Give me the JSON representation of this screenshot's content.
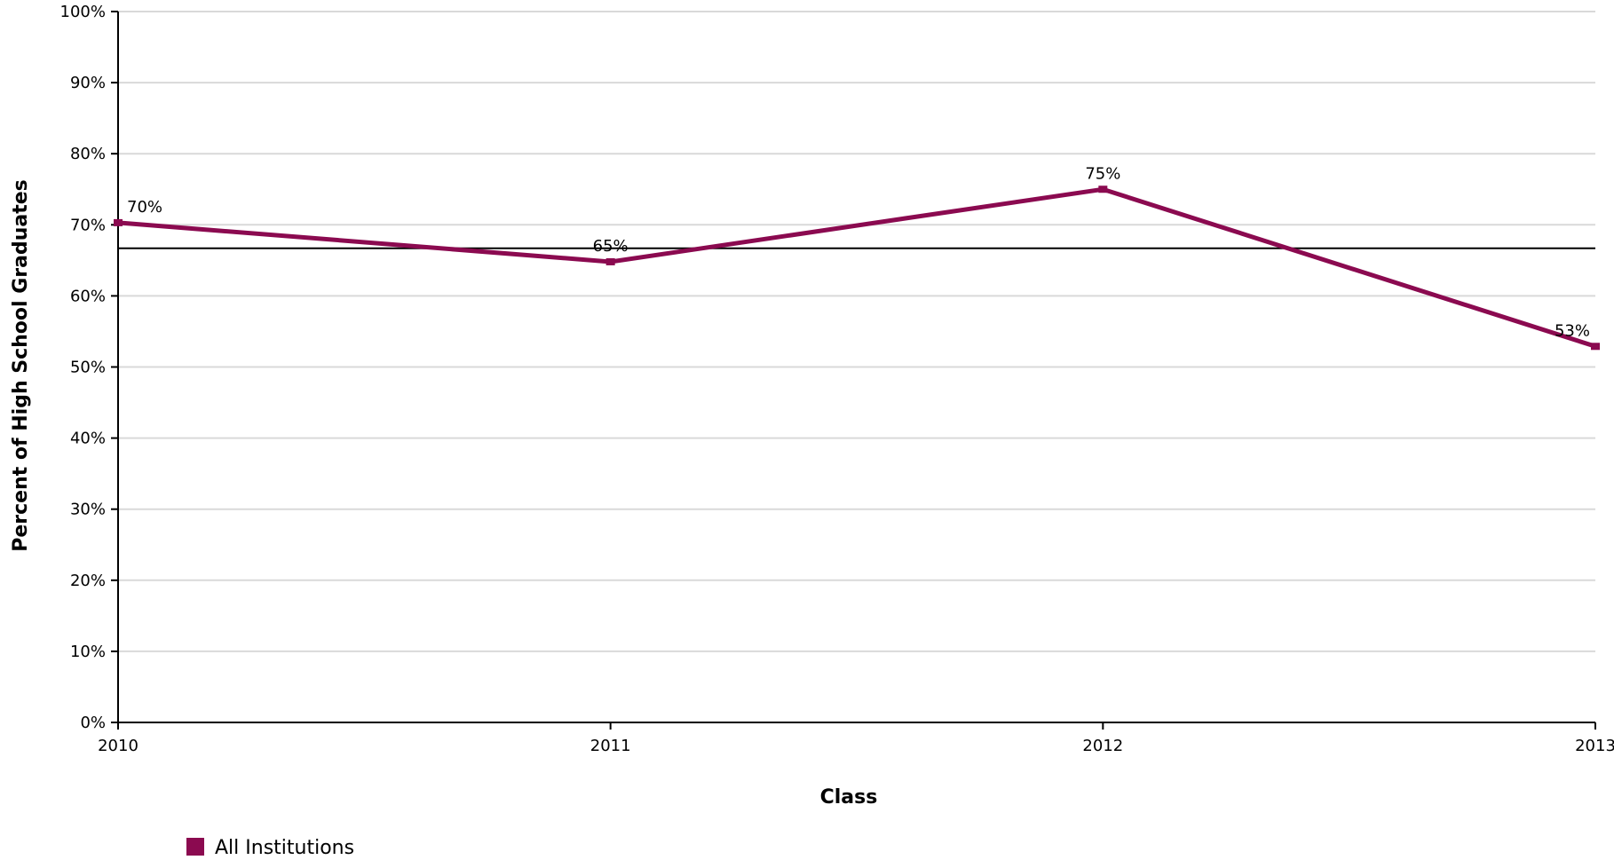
{
  "chart_data": {
    "type": "line",
    "title": "",
    "xlabel": "Class",
    "ylabel": "Percent of High School Graduates",
    "categories": [
      "2010",
      "2011",
      "2012",
      "2013"
    ],
    "series": [
      {
        "name": "All Institutions",
        "color": "#8b0a50",
        "values": [
          70.3,
          64.8,
          75.0,
          52.9
        ],
        "data_labels": [
          "70%",
          "65%",
          "75%",
          "53%"
        ]
      }
    ],
    "reference_line": {
      "value": 66.7,
      "color": "#000000"
    },
    "ylim": [
      0,
      100
    ],
    "y_ticks": [
      0,
      10,
      20,
      30,
      40,
      50,
      60,
      70,
      80,
      90,
      100
    ],
    "y_tick_labels": [
      "0%",
      "10%",
      "20%",
      "30%",
      "40%",
      "50%",
      "60%",
      "70%",
      "80%",
      "90%",
      "100%"
    ],
    "grid": true,
    "legend_position": "bottom-left"
  }
}
